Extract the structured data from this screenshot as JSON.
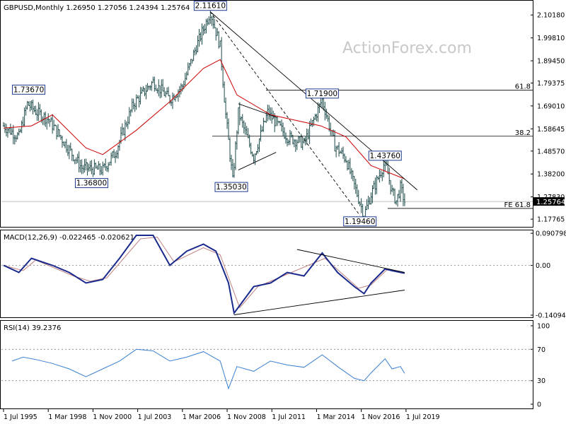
{
  "header": {
    "main": "GBPUSD,Monthly  1.26950 1.27056 1.24394 1.25764",
    "macd": "MACD(12,26,9) -0.022465 -0.020621",
    "rsi": "RSI(14) 39.2376"
  },
  "watermark": "ActionForex.com",
  "chart_data": [
    {
      "type": "candlestick",
      "title": "GBPUSD,Monthly",
      "ohlc_last": {
        "open": 1.2695,
        "high": 1.27056,
        "low": 1.24394,
        "close": 1.25764
      },
      "ylim": [
        1.146,
        2.16
      ],
      "yticks": [
        "2.10180",
        "1.99810",
        "1.89450",
        "1.79375",
        "1.69010",
        "1.58645",
        "1.48570",
        "1.38200",
        "1.27830",
        "1.17765"
      ],
      "current_price_label": "1.25764",
      "price_points": [
        {
          "date": "1995-07",
          "value": 1.6
        },
        {
          "date": "1996-06",
          "value": 1.55
        },
        {
          "date": "1996-12",
          "value": 1.7
        },
        {
          "date": "1997-07",
          "value": 1.66
        },
        {
          "date": "1998-03",
          "value": 1.63
        },
        {
          "date": "1999-03",
          "value": 1.52
        },
        {
          "date": "2000-03",
          "value": 1.41
        },
        {
          "date": "2001-06",
          "value": 1.4
        },
        {
          "date": "2002-03",
          "value": 1.48
        },
        {
          "date": "2003-04",
          "value": 1.7
        },
        {
          "date": "2004-06",
          "value": 1.8
        },
        {
          "date": "2005-06",
          "value": 1.72
        },
        {
          "date": "2006-03",
          "value": 1.78
        },
        {
          "date": "2007-01",
          "value": 1.96
        },
        {
          "date": "2007-11",
          "value": 2.1161
        },
        {
          "date": "2008-06",
          "value": 1.96
        },
        {
          "date": "2008-10",
          "value": 1.65
        },
        {
          "date": "2009-03",
          "value": 1.3503
        },
        {
          "date": "2009-07",
          "value": 1.66
        },
        {
          "date": "2010-06",
          "value": 1.46
        },
        {
          "date": "2011-04",
          "value": 1.66
        },
        {
          "date": "2012-06",
          "value": 1.55
        },
        {
          "date": "2013-06",
          "value": 1.52
        },
        {
          "date": "2014-07",
          "value": 1.719
        },
        {
          "date": "2015-04",
          "value": 1.51
        },
        {
          "date": "2015-12",
          "value": 1.45
        },
        {
          "date": "2016-06",
          "value": 1.33
        },
        {
          "date": "2017-01",
          "value": 1.1946
        },
        {
          "date": "2017-06",
          "value": 1.29
        },
        {
          "date": "2018-04",
          "value": 1.4376
        },
        {
          "date": "2018-09",
          "value": 1.3
        },
        {
          "date": "2018-12",
          "value": 1.26
        },
        {
          "date": "2019-03",
          "value": 1.32
        },
        {
          "date": "2019-06",
          "value": 1.2576
        }
      ],
      "sma_points": [
        {
          "date": "1995-07",
          "value": 1.59
        },
        {
          "date": "1997-03",
          "value": 1.6
        },
        {
          "date": "1998-06",
          "value": 1.65
        },
        {
          "date": "2000-06",
          "value": 1.5
        },
        {
          "date": "2001-06",
          "value": 1.47
        },
        {
          "date": "2003-06",
          "value": 1.58
        },
        {
          "date": "2005-06",
          "value": 1.71
        },
        {
          "date": "2007-06",
          "value": 1.86
        },
        {
          "date": "2008-06",
          "value": 1.9
        },
        {
          "date": "2009-06",
          "value": 1.74
        },
        {
          "date": "2011-06",
          "value": 1.65
        },
        {
          "date": "2014-06",
          "value": 1.6
        },
        {
          "date": "2015-12",
          "value": 1.55
        },
        {
          "date": "2017-06",
          "value": 1.42
        },
        {
          "date": "2019-06",
          "value": 1.36
        }
      ],
      "annotations": [
        {
          "label": "2.11610",
          "date": "2007-11",
          "value": 2.1161,
          "position": "above"
        },
        {
          "label": "1.73670",
          "date": "1997-01",
          "value": 1.7367,
          "position": "above"
        },
        {
          "label": "1.36800",
          "date": "2000-10",
          "value": 1.368,
          "position": "below"
        },
        {
          "label": "1.35030",
          "date": "2009-02",
          "value": 1.3503,
          "position": "below"
        },
        {
          "label": "1.71900",
          "date": "2014-07",
          "value": 1.719,
          "position": "above"
        },
        {
          "label": "1.43760",
          "date": "2018-04",
          "value": 1.4376,
          "position": "above"
        },
        {
          "label": "1.19460",
          "date": "2016-10",
          "value": 1.1946,
          "position": "below"
        }
      ],
      "fib_levels": [
        {
          "label": "61.8",
          "value": 1.7612
        },
        {
          "label": "38.2",
          "value": 1.553
        },
        {
          "label": "FE 61.8",
          "value": 1.2262
        }
      ],
      "trendlines": [
        {
          "style": "solid",
          "from": {
            "date": "2007-11",
            "value": 2.1161
          },
          "to": {
            "date": "2020-03",
            "value": 1.31
          }
        },
        {
          "style": "dashed",
          "from": {
            "date": "2007-11",
            "value": 2.1161
          },
          "to": {
            "date": "2016-10",
            "value": 1.1946
          }
        },
        {
          "style": "solid",
          "from": {
            "date": "2009-07",
            "value": 1.7
          },
          "to": {
            "date": "2011-10",
            "value": 1.64
          }
        },
        {
          "style": "solid",
          "from": {
            "date": "2009-07",
            "value": 1.4
          },
          "to": {
            "date": "2011-10",
            "value": 1.48
          }
        }
      ]
    },
    {
      "type": "line",
      "title": "MACD(12,26,9)",
      "values_last": {
        "macd": -0.022465,
        "signal": -0.020621
      },
      "ylim": [
        -0.145,
        0.095
      ],
      "yticks": [
        "0.090798",
        "0.00",
        "-0.14094"
      ],
      "current_label": "0.00",
      "series": [
        {
          "name": "MACD",
          "points": [
            {
              "date": "1995-07",
              "value": 0.0
            },
            {
              "date": "1996-06",
              "value": -0.02
            },
            {
              "date": "1997-03",
              "value": 0.02
            },
            {
              "date": "1998-06",
              "value": 0.0
            },
            {
              "date": "1999-06",
              "value": -0.02
            },
            {
              "date": "2000-06",
              "value": -0.05
            },
            {
              "date": "2001-06",
              "value": -0.04
            },
            {
              "date": "2002-06",
              "value": 0.02
            },
            {
              "date": "2003-06",
              "value": 0.085
            },
            {
              "date": "2004-06",
              "value": 0.085
            },
            {
              "date": "2005-06",
              "value": 0.0
            },
            {
              "date": "2006-06",
              "value": 0.04
            },
            {
              "date": "2007-06",
              "value": 0.06
            },
            {
              "date": "2008-03",
              "value": 0.04
            },
            {
              "date": "2008-12",
              "value": -0.05
            },
            {
              "date": "2009-04",
              "value": -0.135
            },
            {
              "date": "2010-06",
              "value": -0.06
            },
            {
              "date": "2011-06",
              "value": -0.05
            },
            {
              "date": "2012-06",
              "value": -0.02
            },
            {
              "date": "2013-06",
              "value": -0.03
            },
            {
              "date": "2014-07",
              "value": 0.035
            },
            {
              "date": "2015-06",
              "value": -0.02
            },
            {
              "date": "2016-06",
              "value": -0.06
            },
            {
              "date": "2017-01",
              "value": -0.08
            },
            {
              "date": "2017-06",
              "value": -0.05
            },
            {
              "date": "2018-04",
              "value": -0.01
            },
            {
              "date": "2018-09",
              "value": -0.015
            },
            {
              "date": "2019-06",
              "value": -0.022465
            }
          ]
        },
        {
          "name": "Signal",
          "points": [
            {
              "date": "1995-07",
              "value": 0.0
            },
            {
              "date": "1996-09",
              "value": -0.015
            },
            {
              "date": "1997-06",
              "value": 0.015
            },
            {
              "date": "1999-09",
              "value": -0.03
            },
            {
              "date": "2000-09",
              "value": -0.045
            },
            {
              "date": "2001-09",
              "value": -0.035
            },
            {
              "date": "2003-09",
              "value": 0.075
            },
            {
              "date": "2004-09",
              "value": 0.08
            },
            {
              "date": "2005-09",
              "value": 0.01
            },
            {
              "date": "2007-06",
              "value": 0.05
            },
            {
              "date": "2008-06",
              "value": 0.03
            },
            {
              "date": "2009-08",
              "value": -0.12
            },
            {
              "date": "2010-09",
              "value": -0.06
            },
            {
              "date": "2012-06",
              "value": -0.025
            },
            {
              "date": "2014-09",
              "value": 0.02
            },
            {
              "date": "2016-09",
              "value": -0.065
            },
            {
              "date": "2017-06",
              "value": -0.055
            },
            {
              "date": "2018-06",
              "value": -0.01
            },
            {
              "date": "2019-06",
              "value": -0.020621
            }
          ]
        }
      ],
      "trendlines": [
        {
          "from": {
            "date": "2013-01",
            "value": 0.045
          },
          "to": {
            "date": "2019-06",
            "value": -0.02
          }
        },
        {
          "from": {
            "date": "2009-04",
            "value": -0.14
          },
          "to": {
            "date": "2019-06",
            "value": -0.07
          }
        }
      ]
    },
    {
      "type": "line",
      "title": "RSI(14)",
      "value_last": 39.2376,
      "ylim": [
        0,
        100
      ],
      "yticks": [
        "100",
        "70",
        "30",
        "0"
      ],
      "reference_levels": [
        70,
        30
      ],
      "series": [
        {
          "name": "RSI",
          "points": [
            {
              "date": "1996-01",
              "value": 55
            },
            {
              "date": "1996-09",
              "value": 60
            },
            {
              "date": "1997-06",
              "value": 57
            },
            {
              "date": "1998-06",
              "value": 52
            },
            {
              "date": "1999-06",
              "value": 45
            },
            {
              "date": "2000-06",
              "value": 35
            },
            {
              "date": "2001-06",
              "value": 45
            },
            {
              "date": "2002-06",
              "value": 55
            },
            {
              "date": "2003-06",
              "value": 70
            },
            {
              "date": "2004-06",
              "value": 68
            },
            {
              "date": "2005-06",
              "value": 55
            },
            {
              "date": "2006-06",
              "value": 60
            },
            {
              "date": "2007-06",
              "value": 67
            },
            {
              "date": "2008-06",
              "value": 55
            },
            {
              "date": "2008-12",
              "value": 20
            },
            {
              "date": "2009-06",
              "value": 48
            },
            {
              "date": "2010-06",
              "value": 42
            },
            {
              "date": "2011-06",
              "value": 55
            },
            {
              "date": "2012-06",
              "value": 50
            },
            {
              "date": "2013-06",
              "value": 47
            },
            {
              "date": "2014-07",
              "value": 63
            },
            {
              "date": "2015-06",
              "value": 48
            },
            {
              "date": "2016-06",
              "value": 33
            },
            {
              "date": "2017-01",
              "value": 30
            },
            {
              "date": "2017-06",
              "value": 40
            },
            {
              "date": "2018-04",
              "value": 58
            },
            {
              "date": "2018-09",
              "value": 45
            },
            {
              "date": "2019-03",
              "value": 48
            },
            {
              "date": "2019-06",
              "value": 39.2376
            }
          ]
        }
      ]
    }
  ],
  "x_ticks": [
    "1 Jul 1995",
    "1 Mar 1998",
    "1 Nov 2000",
    "1 Jul 2003",
    "1 Mar 2006",
    "1 Nov 2008",
    "1 Jul 2011",
    "1 Mar 2014",
    "1 Nov 2016",
    "1 Jul 2019"
  ],
  "colors": {
    "candle": "#1d4a4a",
    "sma": "#cc0000",
    "macd": "#1a2a8c",
    "signal": "#c08080",
    "rsi": "#3a7fd0",
    "grid": "#808080",
    "box_border": "#1c3a8c"
  }
}
